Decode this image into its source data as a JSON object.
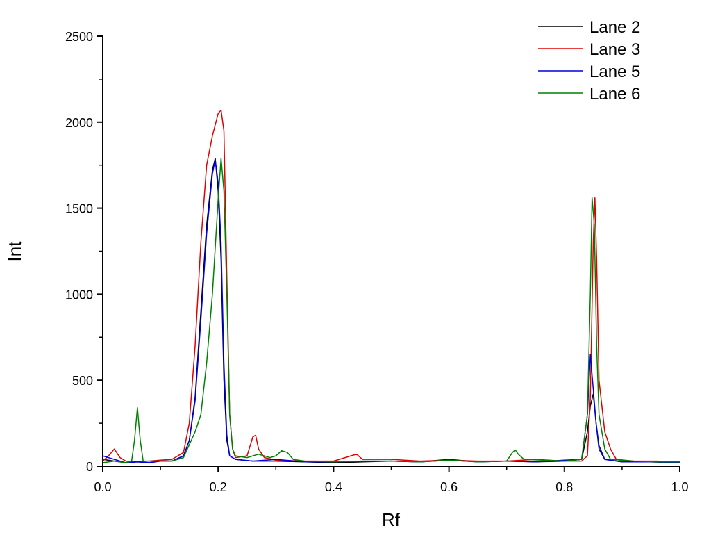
{
  "chart_data": {
    "type": "line",
    "title": "",
    "xlabel": "Rf",
    "ylabel": "Int",
    "xlim": [
      0.0,
      1.0
    ],
    "ylim": [
      0,
      2500
    ],
    "xticks": [
      0.0,
      0.2,
      0.4,
      0.6,
      0.8,
      1.0
    ],
    "xtick_labels": [
      "0.0",
      "0.2",
      "0.4",
      "0.6",
      "0.8",
      "1.0"
    ],
    "yticks": [
      0,
      500,
      1000,
      1500,
      2000,
      2500
    ],
    "ytick_labels": [
      "0",
      "500",
      "1000",
      "1500",
      "2000",
      "2500"
    ],
    "grid": false,
    "legend_position": "top-right",
    "series": [
      {
        "name": "Lane 2",
        "color": "#000000",
        "points": [
          [
            0.0,
            40
          ],
          [
            0.02,
            30
          ],
          [
            0.04,
            20
          ],
          [
            0.06,
            25
          ],
          [
            0.08,
            20
          ],
          [
            0.1,
            30
          ],
          [
            0.12,
            30
          ],
          [
            0.14,
            60
          ],
          [
            0.15,
            150
          ],
          [
            0.16,
            400
          ],
          [
            0.17,
            900
          ],
          [
            0.18,
            1400
          ],
          [
            0.19,
            1720
          ],
          [
            0.195,
            1790
          ],
          [
            0.2,
            1600
          ],
          [
            0.205,
            1200
          ],
          [
            0.21,
            500
          ],
          [
            0.215,
            150
          ],
          [
            0.22,
            60
          ],
          [
            0.23,
            40
          ],
          [
            0.26,
            30
          ],
          [
            0.3,
            30
          ],
          [
            0.35,
            25
          ],
          [
            0.4,
            20
          ],
          [
            0.45,
            25
          ],
          [
            0.5,
            30
          ],
          [
            0.55,
            25
          ],
          [
            0.6,
            40
          ],
          [
            0.65,
            25
          ],
          [
            0.7,
            30
          ],
          [
            0.75,
            25
          ],
          [
            0.8,
            30
          ],
          [
            0.83,
            40
          ],
          [
            0.84,
            200
          ],
          [
            0.845,
            350
          ],
          [
            0.85,
            420
          ],
          [
            0.855,
            250
          ],
          [
            0.86,
            100
          ],
          [
            0.87,
            40
          ],
          [
            0.9,
            25
          ],
          [
            0.95,
            25
          ],
          [
            1.0,
            20
          ]
        ]
      },
      {
        "name": "Lane 3",
        "color": "#e00000",
        "points": [
          [
            0.0,
            30
          ],
          [
            0.01,
            60
          ],
          [
            0.02,
            100
          ],
          [
            0.03,
            50
          ],
          [
            0.04,
            30
          ],
          [
            0.06,
            25
          ],
          [
            0.08,
            30
          ],
          [
            0.1,
            35
          ],
          [
            0.12,
            40
          ],
          [
            0.14,
            80
          ],
          [
            0.15,
            250
          ],
          [
            0.16,
            700
          ],
          [
            0.17,
            1300
          ],
          [
            0.18,
            1750
          ],
          [
            0.19,
            1920
          ],
          [
            0.2,
            2050
          ],
          [
            0.205,
            2070
          ],
          [
            0.21,
            1950
          ],
          [
            0.215,
            1100
          ],
          [
            0.22,
            300
          ],
          [
            0.225,
            100
          ],
          [
            0.23,
            50
          ],
          [
            0.25,
            60
          ],
          [
            0.26,
            170
          ],
          [
            0.265,
            180
          ],
          [
            0.27,
            100
          ],
          [
            0.28,
            50
          ],
          [
            0.3,
            35
          ],
          [
            0.35,
            30
          ],
          [
            0.4,
            30
          ],
          [
            0.43,
            60
          ],
          [
            0.44,
            70
          ],
          [
            0.45,
            40
          ],
          [
            0.5,
            40
          ],
          [
            0.55,
            30
          ],
          [
            0.6,
            35
          ],
          [
            0.65,
            30
          ],
          [
            0.7,
            30
          ],
          [
            0.75,
            40
          ],
          [
            0.8,
            30
          ],
          [
            0.83,
            30
          ],
          [
            0.84,
            60
          ],
          [
            0.845,
            400
          ],
          [
            0.85,
            1300
          ],
          [
            0.853,
            1560
          ],
          [
            0.856,
            1200
          ],
          [
            0.86,
            500
          ],
          [
            0.87,
            200
          ],
          [
            0.88,
            100
          ],
          [
            0.89,
            40
          ],
          [
            0.92,
            30
          ],
          [
            0.96,
            30
          ],
          [
            1.0,
            25
          ]
        ]
      },
      {
        "name": "Lane 5",
        "color": "#0000e0",
        "points": [
          [
            0.0,
            60
          ],
          [
            0.02,
            40
          ],
          [
            0.04,
            20
          ],
          [
            0.06,
            25
          ],
          [
            0.08,
            20
          ],
          [
            0.1,
            30
          ],
          [
            0.12,
            30
          ],
          [
            0.14,
            60
          ],
          [
            0.15,
            150
          ],
          [
            0.16,
            380
          ],
          [
            0.17,
            850
          ],
          [
            0.18,
            1350
          ],
          [
            0.19,
            1700
          ],
          [
            0.195,
            1780
          ],
          [
            0.2,
            1650
          ],
          [
            0.205,
            1300
          ],
          [
            0.21,
            600
          ],
          [
            0.215,
            180
          ],
          [
            0.22,
            60
          ],
          [
            0.23,
            40
          ],
          [
            0.26,
            30
          ],
          [
            0.3,
            40
          ],
          [
            0.35,
            25
          ],
          [
            0.4,
            25
          ],
          [
            0.45,
            30
          ],
          [
            0.5,
            30
          ],
          [
            0.55,
            25
          ],
          [
            0.6,
            35
          ],
          [
            0.65,
            25
          ],
          [
            0.7,
            30
          ],
          [
            0.75,
            25
          ],
          [
            0.8,
            35
          ],
          [
            0.83,
            40
          ],
          [
            0.84,
            300
          ],
          [
            0.845,
            650
          ],
          [
            0.85,
            450
          ],
          [
            0.855,
            250
          ],
          [
            0.86,
            120
          ],
          [
            0.87,
            40
          ],
          [
            0.9,
            25
          ],
          [
            0.95,
            25
          ],
          [
            1.0,
            20
          ]
        ]
      },
      {
        "name": "Lane 6",
        "color": "#008000",
        "points": [
          [
            0.0,
            20
          ],
          [
            0.02,
            30
          ],
          [
            0.04,
            20
          ],
          [
            0.05,
            30
          ],
          [
            0.055,
            150
          ],
          [
            0.06,
            340
          ],
          [
            0.065,
            150
          ],
          [
            0.07,
            30
          ],
          [
            0.08,
            30
          ],
          [
            0.1,
            30
          ],
          [
            0.12,
            30
          ],
          [
            0.14,
            50
          ],
          [
            0.16,
            200
          ],
          [
            0.17,
            300
          ],
          [
            0.18,
            600
          ],
          [
            0.19,
            1000
          ],
          [
            0.2,
            1550
          ],
          [
            0.205,
            1790
          ],
          [
            0.21,
            1600
          ],
          [
            0.215,
            1000
          ],
          [
            0.22,
            300
          ],
          [
            0.225,
            100
          ],
          [
            0.23,
            60
          ],
          [
            0.25,
            50
          ],
          [
            0.27,
            70
          ],
          [
            0.29,
            50
          ],
          [
            0.3,
            60
          ],
          [
            0.31,
            90
          ],
          [
            0.32,
            80
          ],
          [
            0.33,
            40
          ],
          [
            0.35,
            30
          ],
          [
            0.4,
            25
          ],
          [
            0.45,
            30
          ],
          [
            0.5,
            30
          ],
          [
            0.55,
            25
          ],
          [
            0.6,
            35
          ],
          [
            0.65,
            25
          ],
          [
            0.7,
            30
          ],
          [
            0.71,
            80
          ],
          [
            0.715,
            95
          ],
          [
            0.72,
            70
          ],
          [
            0.73,
            40
          ],
          [
            0.8,
            30
          ],
          [
            0.83,
            40
          ],
          [
            0.84,
            300
          ],
          [
            0.845,
            1000
          ],
          [
            0.848,
            1560
          ],
          [
            0.852,
            1400
          ],
          [
            0.856,
            700
          ],
          [
            0.86,
            300
          ],
          [
            0.87,
            100
          ],
          [
            0.88,
            40
          ],
          [
            0.92,
            30
          ],
          [
            0.96,
            25
          ],
          [
            1.0,
            25
          ]
        ]
      }
    ]
  }
}
